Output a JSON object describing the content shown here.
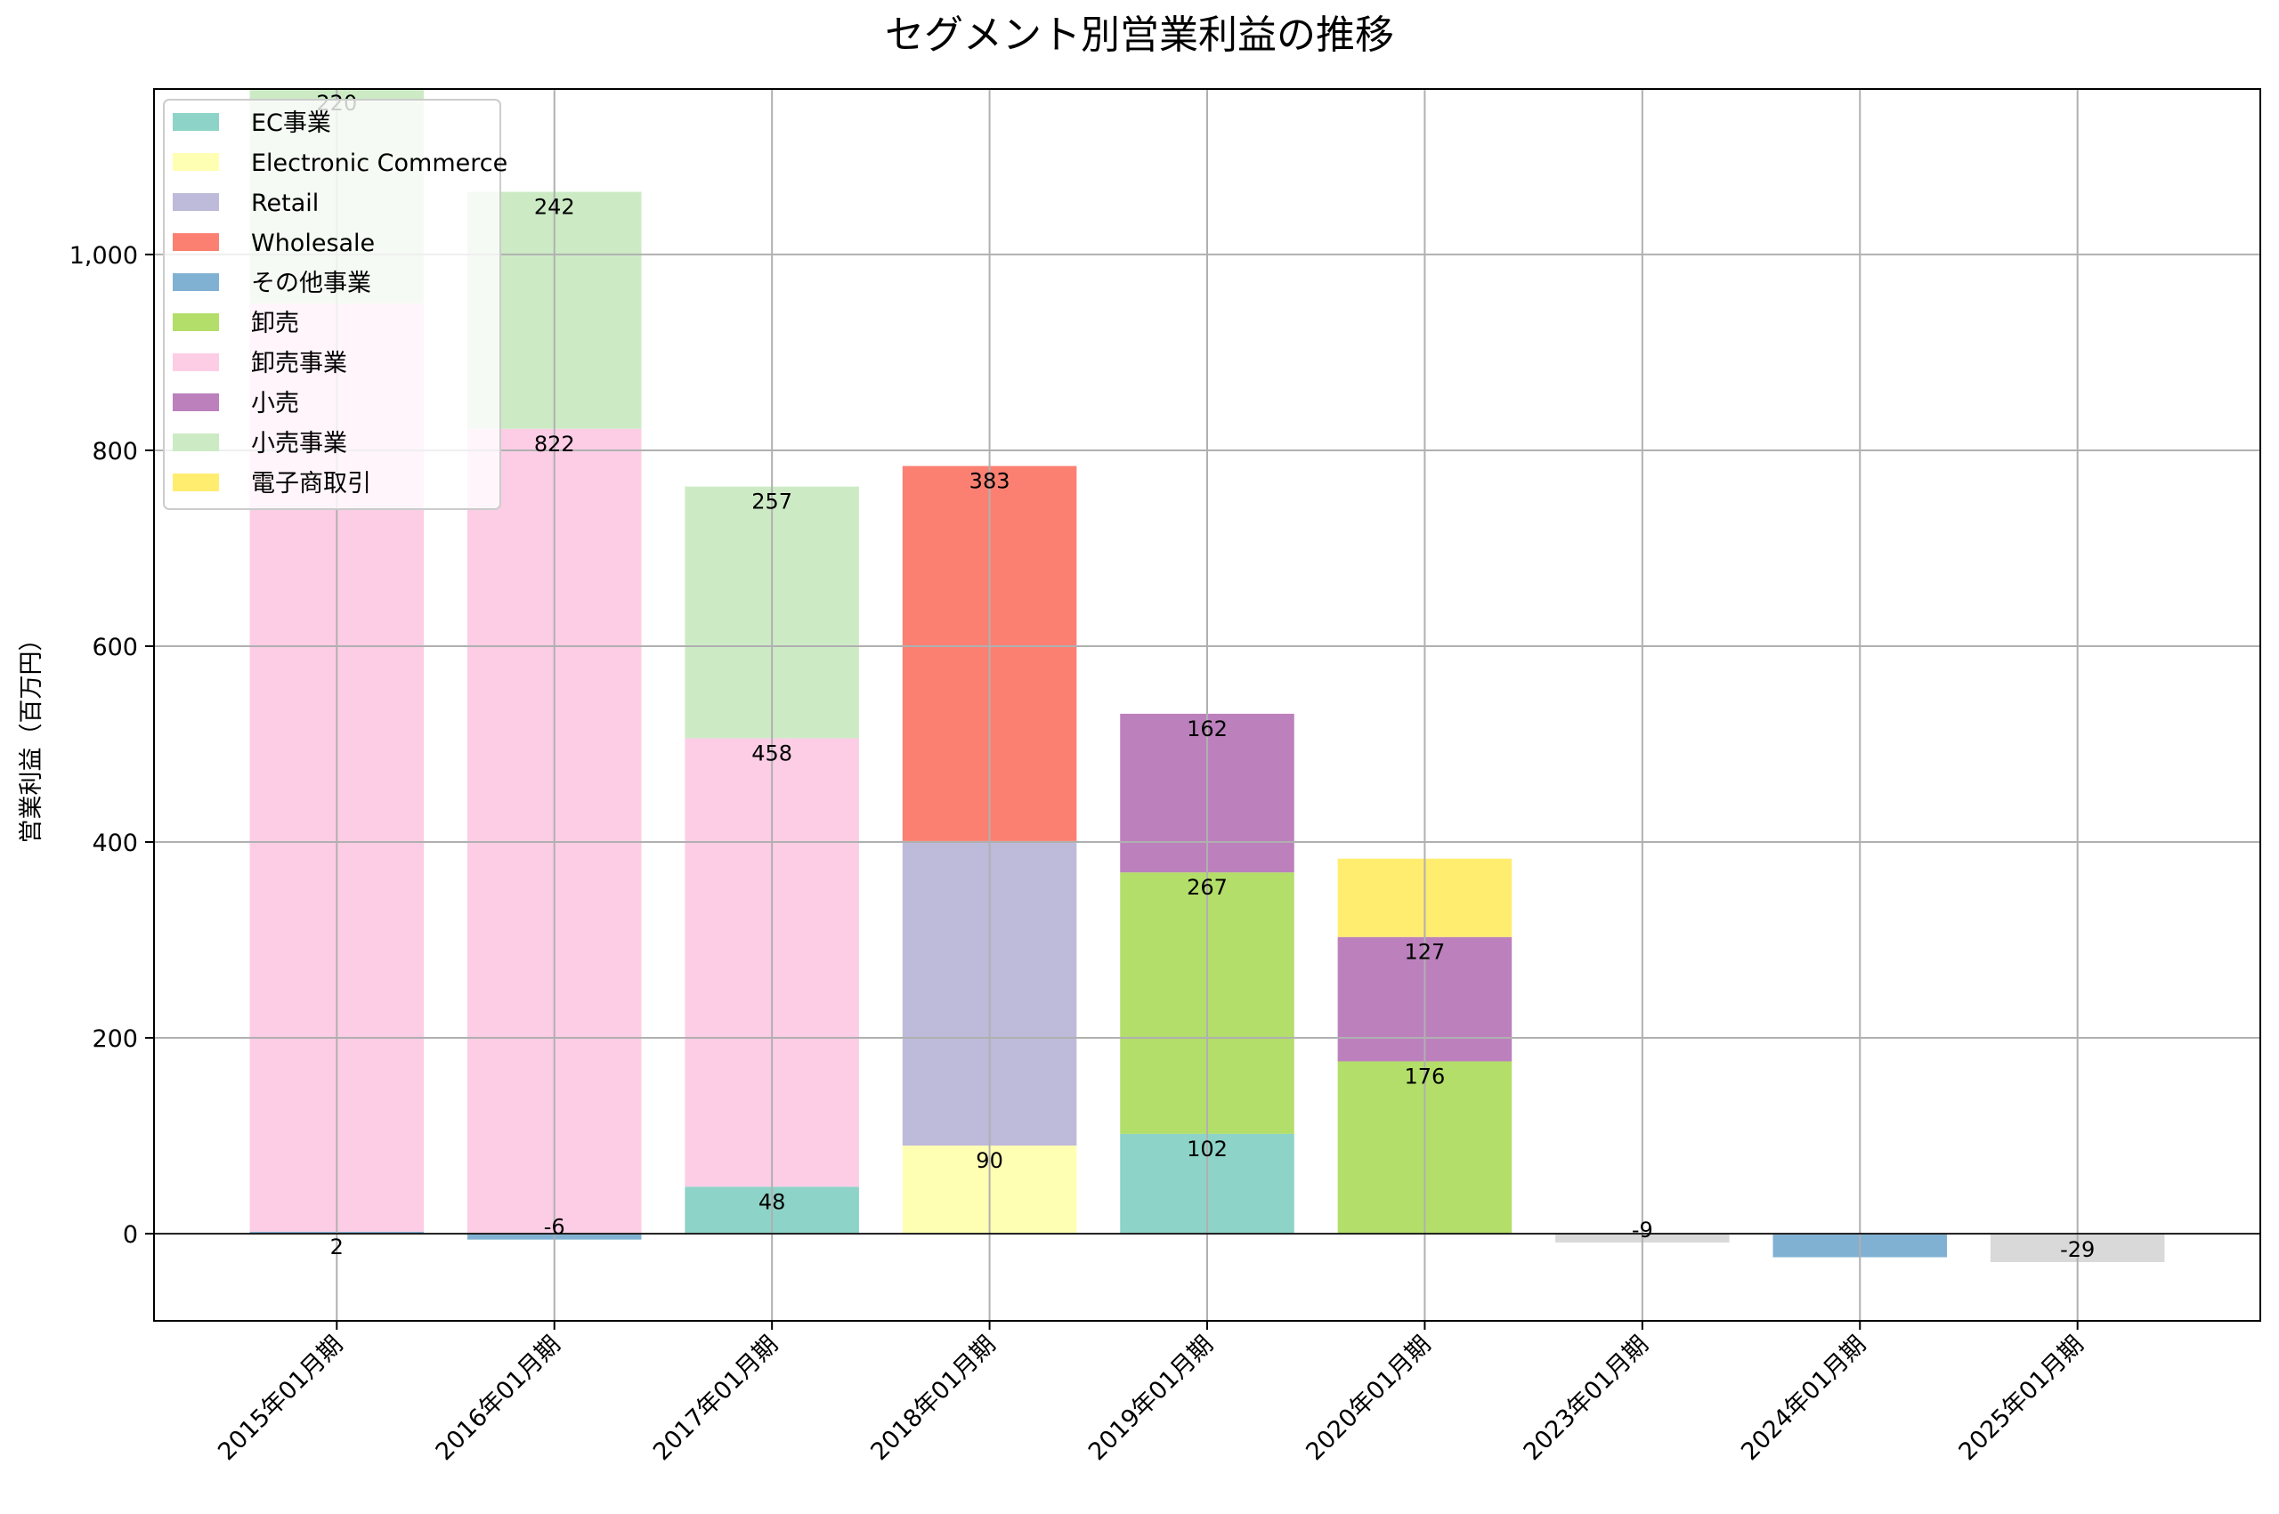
{
  "chart_data": {
    "type": "bar",
    "stacked": true,
    "title": "セグメント別営業利益の推移",
    "xlabel": "",
    "ylabel": "営業利益（百万円）",
    "ylim": [
      -89,
      1169
    ],
    "yticks": [
      0,
      200,
      400,
      600,
      800,
      1000
    ],
    "ytick_labels": [
      "0",
      "200",
      "400",
      "600",
      "800",
      "1,000"
    ],
    "grid": true,
    "legend_position": "top-left",
    "categories": [
      "2015年01月期",
      "2016年01月期",
      "2017年01月期",
      "2018年01月期",
      "2019年01月期",
      "2020年01月期",
      "2023年01月期",
      "2024年01月期",
      "2025年01月期"
    ],
    "series": [
      {
        "name": "EC事業",
        "color": "#8dd3c7",
        "in_legend": true,
        "values": [
          null,
          null,
          48,
          null,
          102,
          null,
          null,
          null,
          null
        ],
        "labels": [
          null,
          null,
          "48",
          null,
          "102",
          null,
          null,
          null,
          null
        ]
      },
      {
        "name": "Electronic Commerce",
        "color": "#ffffb3",
        "in_legend": true,
        "values": [
          null,
          null,
          null,
          90,
          null,
          null,
          null,
          null,
          null
        ],
        "labels": [
          null,
          null,
          null,
          "90",
          null,
          null,
          null,
          null,
          null
        ]
      },
      {
        "name": "Retail",
        "color": "#bebada",
        "in_legend": true,
        "values": [
          null,
          null,
          null,
          311,
          null,
          null,
          null,
          null,
          null
        ],
        "labels": [
          null,
          null,
          null,
          null,
          null,
          null,
          null,
          null,
          null
        ]
      },
      {
        "name": "Wholesale",
        "color": "#fb8072",
        "in_legend": true,
        "values": [
          null,
          null,
          null,
          383,
          null,
          null,
          null,
          null,
          null
        ],
        "labels": [
          null,
          null,
          null,
          "383",
          null,
          null,
          null,
          null,
          null
        ]
      },
      {
        "name": "その他事業",
        "color": "#80b1d3",
        "in_legend": true,
        "values": [
          2,
          -6,
          null,
          null,
          null,
          null,
          null,
          -24,
          null
        ],
        "labels": [
          "2",
          "-6",
          null,
          null,
          null,
          null,
          null,
          null,
          null
        ]
      },
      {
        "name": "卸売",
        "color": "#b3de69",
        "in_legend": true,
        "values": [
          null,
          null,
          null,
          null,
          267,
          176,
          null,
          null,
          null
        ],
        "labels": [
          null,
          null,
          null,
          null,
          "267",
          "176",
          null,
          null,
          null
        ]
      },
      {
        "name": "卸売事業",
        "color": "#fccde5",
        "in_legend": true,
        "values": [
          948,
          822,
          458,
          null,
          null,
          null,
          null,
          null,
          null
        ],
        "labels": [
          null,
          "822",
          "458",
          null,
          null,
          null,
          null,
          null,
          null
        ]
      },
      {
        "name": "小売",
        "color": "#bc80bd",
        "in_legend": true,
        "values": [
          null,
          null,
          null,
          null,
          162,
          127,
          null,
          null,
          null
        ],
        "labels": [
          null,
          null,
          null,
          null,
          "162",
          "127",
          null,
          null,
          null
        ]
      },
      {
        "name": "小売事業",
        "color": "#ccebc5",
        "in_legend": true,
        "values": [
          220,
          242,
          257,
          null,
          null,
          null,
          null,
          null,
          null
        ],
        "labels": [
          "220",
          "242",
          "257",
          null,
          null,
          null,
          null,
          null,
          null
        ]
      },
      {
        "name": "電子商取引",
        "color": "#ffed6f",
        "in_legend": true,
        "values": [
          null,
          null,
          null,
          null,
          null,
          80,
          null,
          null,
          null
        ],
        "labels": [
          null,
          null,
          null,
          null,
          null,
          null,
          null,
          null,
          null
        ]
      },
      {
        "name": "",
        "color": "#d9d9d9",
        "in_legend": false,
        "values": [
          null,
          null,
          null,
          null,
          null,
          null,
          -9,
          null,
          -29
        ],
        "labels": [
          null,
          null,
          null,
          null,
          null,
          null,
          "-9",
          null,
          "-29"
        ]
      }
    ]
  }
}
